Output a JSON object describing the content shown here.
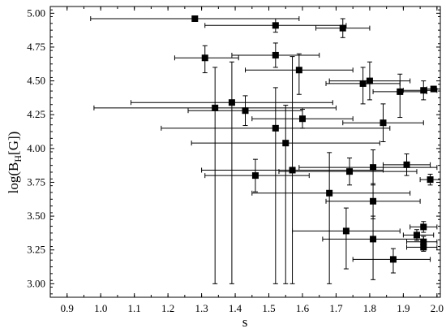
{
  "chart_data": {
    "type": "scatter",
    "xlabel": "s",
    "ylabel": "log(B",
    "ylabel_sub": "H",
    "ylabel_tail": "[G])",
    "xlim": [
      0.85,
      2.01
    ],
    "ylim": [
      2.9,
      5.05
    ],
    "x_ticks": [
      0.9,
      1.0,
      1.1,
      1.2,
      1.3,
      1.4,
      1.5,
      1.6,
      1.7,
      1.8,
      1.9,
      2.0
    ],
    "x_tick_labels": [
      "0.9",
      "1.0",
      "1.1",
      "1.2",
      "1.3",
      "1.4",
      "1.5",
      "1.6",
      "1.7",
      "1.8",
      "1.9",
      "2.0"
    ],
    "y_ticks": [
      3.0,
      3.25,
      3.5,
      3.75,
      4.0,
      4.25,
      4.5,
      4.75,
      5.0
    ],
    "y_tick_labels": [
      "3.00",
      "3.25",
      "3.50",
      "3.75",
      "4.00",
      "4.25",
      "4.50",
      "4.75",
      "5.00"
    ],
    "points": [
      {
        "x": 1.28,
        "y": 4.96,
        "xerr": [
          0.97,
          1.59
        ],
        "yerr": [
          4.94,
          4.98
        ]
      },
      {
        "x": 1.52,
        "y": 4.91,
        "xerr": [
          1.31,
          1.73
        ],
        "yerr": [
          4.86,
          4.96
        ]
      },
      {
        "x": 1.72,
        "y": 4.89,
        "xerr": [
          1.64,
          1.8
        ],
        "yerr": [
          4.82,
          4.96
        ]
      },
      {
        "x": 1.31,
        "y": 4.67,
        "xerr": [
          1.22,
          1.41
        ],
        "yerr": [
          4.56,
          4.76
        ]
      },
      {
        "x": 1.52,
        "y": 4.69,
        "xerr": [
          1.39,
          1.65
        ],
        "yerr": [
          4.6,
          4.78
        ]
      },
      {
        "x": 1.59,
        "y": 4.58,
        "xerr": [
          1.43,
          1.75
        ],
        "yerr": [
          4.4,
          4.7
        ]
      },
      {
        "x": 1.8,
        "y": 4.5,
        "xerr": [
          1.68,
          1.92
        ],
        "yerr": [
          4.36,
          4.64
        ]
      },
      {
        "x": 1.78,
        "y": 4.48,
        "xerr": [
          1.67,
          1.89
        ],
        "yerr": [
          4.33,
          4.6
        ]
      },
      {
        "x": 1.89,
        "y": 4.42,
        "xerr": [
          1.81,
          1.97
        ],
        "yerr": [
          4.23,
          4.55
        ]
      },
      {
        "x": 1.96,
        "y": 4.43,
        "xerr": [
          1.9,
          2.0
        ],
        "yerr": [
          4.36,
          4.5
        ]
      },
      {
        "x": 1.99,
        "y": 4.44,
        "xerr": [
          1.97,
          2.01
        ],
        "yerr": [
          4.42,
          4.46
        ]
      },
      {
        "x": 1.39,
        "y": 4.34,
        "xerr": [
          1.09,
          1.69
        ],
        "yerr": [
          3.0,
          4.64
        ]
      },
      {
        "x": 1.34,
        "y": 4.3,
        "xerr": [
          0.98,
          1.7
        ],
        "yerr": [
          3.0,
          4.6
        ]
      },
      {
        "x": 1.43,
        "y": 4.28,
        "xerr": [
          1.26,
          1.6
        ],
        "yerr": [
          4.17,
          4.39
        ]
      },
      {
        "x": 1.6,
        "y": 4.22,
        "xerr": [
          1.45,
          1.75
        ],
        "yerr": [
          4.15,
          4.29
        ]
      },
      {
        "x": 1.84,
        "y": 4.19,
        "xerr": [
          1.72,
          1.96
        ],
        "yerr": [
          4.05,
          4.33
        ]
      },
      {
        "x": 1.52,
        "y": 4.15,
        "xerr": [
          1.18,
          1.86
        ],
        "yerr": [
          3.0,
          4.45
        ]
      },
      {
        "x": 1.55,
        "y": 4.04,
        "xerr": [
          1.27,
          1.83
        ],
        "yerr": [
          3.0,
          4.32
        ]
      },
      {
        "x": 1.91,
        "y": 3.88,
        "xerr": [
          1.84,
          1.98
        ],
        "yerr": [
          3.8,
          3.96
        ]
      },
      {
        "x": 1.81,
        "y": 3.86,
        "xerr": [
          1.59,
          2.0
        ],
        "yerr": [
          3.73,
          3.99
        ]
      },
      {
        "x": 1.74,
        "y": 3.83,
        "xerr": [
          1.53,
          1.94
        ],
        "yerr": [
          3.73,
          3.93
        ]
      },
      {
        "x": 1.57,
        "y": 3.84,
        "xerr": [
          1.3,
          1.84
        ],
        "yerr": [
          3.0,
          4.68
        ]
      },
      {
        "x": 1.46,
        "y": 3.8,
        "xerr": [
          1.31,
          1.62
        ],
        "yerr": [
          3.68,
          3.92
        ]
      },
      {
        "x": 1.98,
        "y": 3.77,
        "xerr": [
          1.95,
          2.01
        ],
        "yerr": [
          3.73,
          3.81
        ]
      },
      {
        "x": 1.68,
        "y": 3.67,
        "xerr": [
          1.45,
          1.92
        ],
        "yerr": [
          3.0,
          3.97
        ]
      },
      {
        "x": 1.81,
        "y": 3.61,
        "xerr": [
          1.67,
          1.95
        ],
        "yerr": [
          3.48,
          3.74
        ]
      },
      {
        "x": 1.96,
        "y": 3.42,
        "xerr": [
          1.92,
          2.0
        ],
        "yerr": [
          3.38,
          3.46
        ]
      },
      {
        "x": 1.73,
        "y": 3.39,
        "xerr": [
          1.57,
          1.89
        ],
        "yerr": [
          3.11,
          3.56
        ]
      },
      {
        "x": 1.94,
        "y": 3.36,
        "xerr": [
          1.9,
          1.99
        ],
        "yerr": [
          3.32,
          3.4
        ]
      },
      {
        "x": 1.81,
        "y": 3.33,
        "xerr": [
          1.66,
          1.96
        ],
        "yerr": [
          3.03,
          3.5
        ]
      },
      {
        "x": 1.96,
        "y": 3.31,
        "xerr": [
          1.91,
          2.0
        ],
        "yerr": [
          3.27,
          3.35
        ]
      },
      {
        "x": 1.96,
        "y": 3.27,
        "xerr": [
          1.91,
          2.0
        ],
        "yerr": [
          3.24,
          3.3
        ]
      },
      {
        "x": 1.87,
        "y": 3.18,
        "xerr": [
          1.75,
          1.98
        ],
        "yerr": [
          3.08,
          3.26
        ]
      }
    ]
  }
}
